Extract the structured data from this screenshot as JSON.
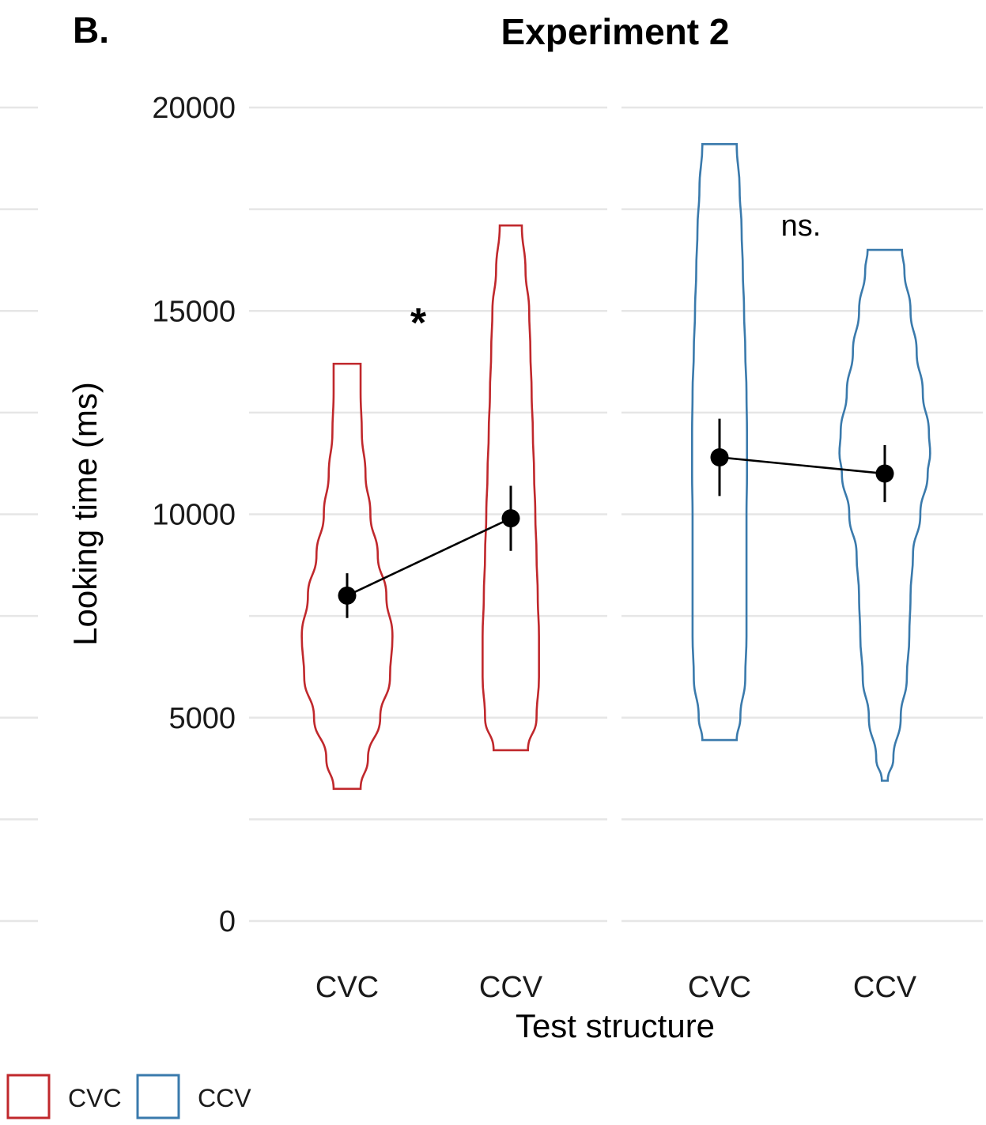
{
  "panel_label": "B.",
  "legend": [
    {
      "label": "CVC",
      "color": "#c0282c"
    },
    {
      "label": "CCV",
      "color": "#3a7aac"
    }
  ],
  "chart_data": {
    "type": "violin",
    "title": "Experiment 2",
    "xlabel": "Test structure",
    "ylabel": "Looking time (ms)",
    "ylim": [
      0,
      20000
    ],
    "y_ticks": [
      0,
      5000,
      10000,
      15000,
      20000
    ],
    "grid": true,
    "legend_position": "bottom-left",
    "facets": [
      {
        "categories": [
          "CVC",
          "CCV"
        ],
        "annotation": "*",
        "groups": [
          {
            "category": "CVC",
            "color_series": "CVC",
            "color": "#c0282c",
            "min": 3250,
            "max": 13700,
            "mean": 8000,
            "ci": [
              7450,
              8550
            ],
            "density": [
              [
                3250,
                0.55
              ],
              [
                4000,
                0.85
              ],
              [
                5000,
                1.35
              ],
              [
                6000,
                1.75
              ],
              [
                7000,
                1.85
              ],
              [
                8000,
                1.6
              ],
              [
                9000,
                1.25
              ],
              [
                10000,
                0.95
              ],
              [
                11000,
                0.75
              ],
              [
                12000,
                0.6
              ],
              [
                13000,
                0.55
              ],
              [
                13700,
                0.55
              ]
            ]
          },
          {
            "category": "CCV",
            "color_series": "CVC",
            "color": "#c0282c",
            "min": 4200,
            "max": 17100,
            "mean": 9900,
            "ci": [
              9100,
              10700
            ],
            "density": [
              [
                4200,
                0.7
              ],
              [
                5000,
                1.05
              ],
              [
                6000,
                1.15
              ],
              [
                7000,
                1.15
              ],
              [
                8000,
                1.1
              ],
              [
                9000,
                1.05
              ],
              [
                10000,
                1.0
              ],
              [
                11000,
                0.95
              ],
              [
                12000,
                0.9
              ],
              [
                13000,
                0.85
              ],
              [
                14000,
                0.8
              ],
              [
                15000,
                0.75
              ],
              [
                16000,
                0.6
              ],
              [
                17100,
                0.45
              ]
            ]
          }
        ],
        "means_line": true
      },
      {
        "categories": [
          "CVC",
          "CCV"
        ],
        "annotation": "ns.",
        "groups": [
          {
            "category": "CVC",
            "color_series": "CCV",
            "color": "#3a7aac",
            "min": 4450,
            "max": 19100,
            "mean": 11400,
            "ci": [
              10450,
              12350
            ],
            "density": [
              [
                4450,
                0.7
              ],
              [
                5000,
                0.85
              ],
              [
                6000,
                1.05
              ],
              [
                7000,
                1.1
              ],
              [
                8000,
                1.1
              ],
              [
                9000,
                1.1
              ],
              [
                10000,
                1.1
              ],
              [
                11000,
                1.12
              ],
              [
                12000,
                1.12
              ],
              [
                13000,
                1.1
              ],
              [
                14000,
                1.05
              ],
              [
                15000,
                1.0
              ],
              [
                16000,
                0.95
              ],
              [
                17000,
                0.9
              ],
              [
                18000,
                0.82
              ],
              [
                19100,
                0.7
              ]
            ]
          },
          {
            "category": "CCV",
            "color_series": "CCV",
            "color": "#3a7aac",
            "min": 3450,
            "max": 16500,
            "mean": 11000,
            "ci": [
              10300,
              11700
            ],
            "density": [
              [
                3450,
                0.12
              ],
              [
                4000,
                0.35
              ],
              [
                5000,
                0.65
              ],
              [
                6000,
                0.9
              ],
              [
                7000,
                1.0
              ],
              [
                8000,
                1.05
              ],
              [
                9000,
                1.15
              ],
              [
                10000,
                1.45
              ],
              [
                11000,
                1.75
              ],
              [
                11500,
                1.85
              ],
              [
                12000,
                1.8
              ],
              [
                13000,
                1.55
              ],
              [
                14000,
                1.3
              ],
              [
                15000,
                1.05
              ],
              [
                16000,
                0.8
              ],
              [
                16500,
                0.7
              ]
            ]
          }
        ],
        "means_line": true
      }
    ]
  }
}
